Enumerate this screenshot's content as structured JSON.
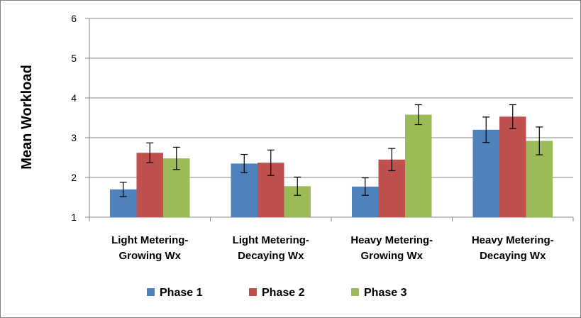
{
  "chart_data": {
    "type": "bar",
    "title": "",
    "xlabel": "",
    "ylabel": "Mean Workload",
    "ylim": [
      1,
      6
    ],
    "yticks": [
      1,
      2,
      3,
      4,
      5,
      6
    ],
    "grid": true,
    "legend_position": "bottom",
    "categories": [
      [
        "Light Metering-",
        "Growing Wx"
      ],
      [
        "Light Metering-",
        "Decaying Wx"
      ],
      [
        "Heavy Metering-",
        "Growing Wx"
      ],
      [
        "Heavy Metering-",
        "Decaying Wx"
      ]
    ],
    "series": [
      {
        "name": "Phase 1",
        "color": "#4f81bd",
        "values": [
          1.7,
          2.35,
          1.77,
          3.2
        ],
        "error": [
          0.18,
          0.23,
          0.22,
          0.32
        ]
      },
      {
        "name": "Phase 2",
        "color": "#c0504d",
        "values": [
          2.62,
          2.37,
          2.45,
          3.53
        ],
        "error": [
          0.25,
          0.32,
          0.28,
          0.3
        ]
      },
      {
        "name": "Phase 3",
        "color": "#9bbb59",
        "values": [
          2.48,
          1.78,
          3.58,
          2.92
        ],
        "error": [
          0.28,
          0.23,
          0.25,
          0.35
        ]
      }
    ]
  }
}
